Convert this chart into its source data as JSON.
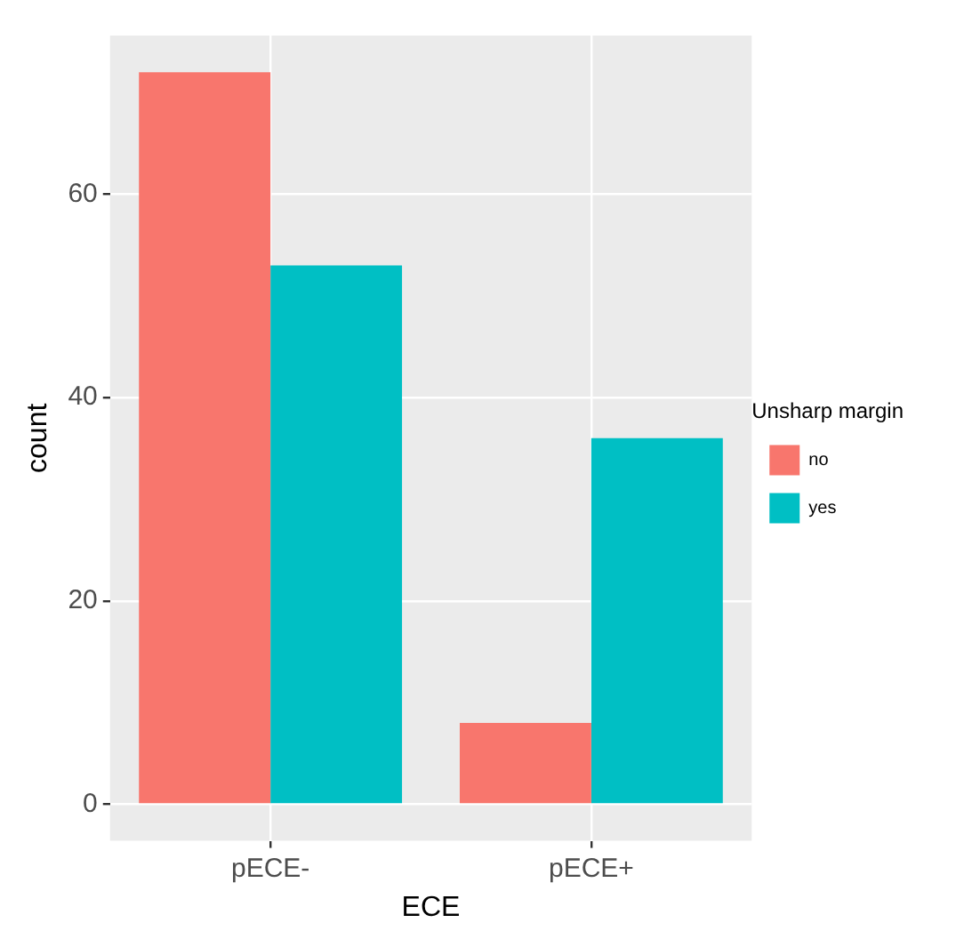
{
  "chart_data": {
    "type": "bar",
    "xlabel": "ECE",
    "ylabel": "count",
    "legend_title": "Unsharp margin",
    "categories": [
      "pECE-",
      "pECE+"
    ],
    "series": [
      {
        "name": "no",
        "color": "#f8766d",
        "values": [
          72,
          8
        ]
      },
      {
        "name": "yes",
        "color": "#00bfc4",
        "values": [
          53,
          36
        ]
      }
    ],
    "ylim": [
      -3.6,
      75.6
    ],
    "yticks": [
      0,
      20,
      40,
      60
    ],
    "grid": true,
    "legend": "right"
  }
}
